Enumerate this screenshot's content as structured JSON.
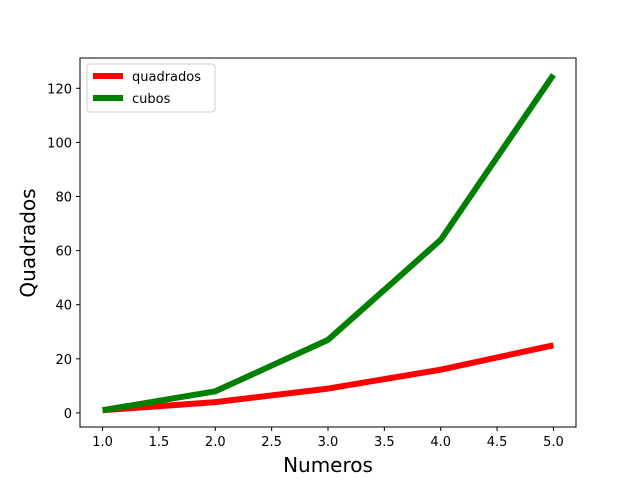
{
  "chart_data": {
    "type": "line",
    "title": "",
    "xlabel": "Numeros",
    "ylabel": "Quadrados",
    "x": [
      1,
      2,
      3,
      4,
      5
    ],
    "series": [
      {
        "name": "quadrados",
        "values": [
          1,
          4,
          9,
          16,
          25
        ],
        "color": "#ff0000"
      },
      {
        "name": "cubos",
        "values": [
          1,
          8,
          27,
          64,
          125
        ],
        "color": "#008000"
      }
    ],
    "xlim": [
      0.8,
      5.2
    ],
    "ylim": [
      -5.2,
      131.2
    ],
    "xticks": [
      "1.0",
      "1.5",
      "2.0",
      "2.5",
      "3.0",
      "3.5",
      "4.0",
      "4.5",
      "5.0"
    ],
    "yticks": [
      "0",
      "20",
      "40",
      "60",
      "80",
      "100",
      "120"
    ],
    "grid": false,
    "legend_position": "top-left"
  }
}
